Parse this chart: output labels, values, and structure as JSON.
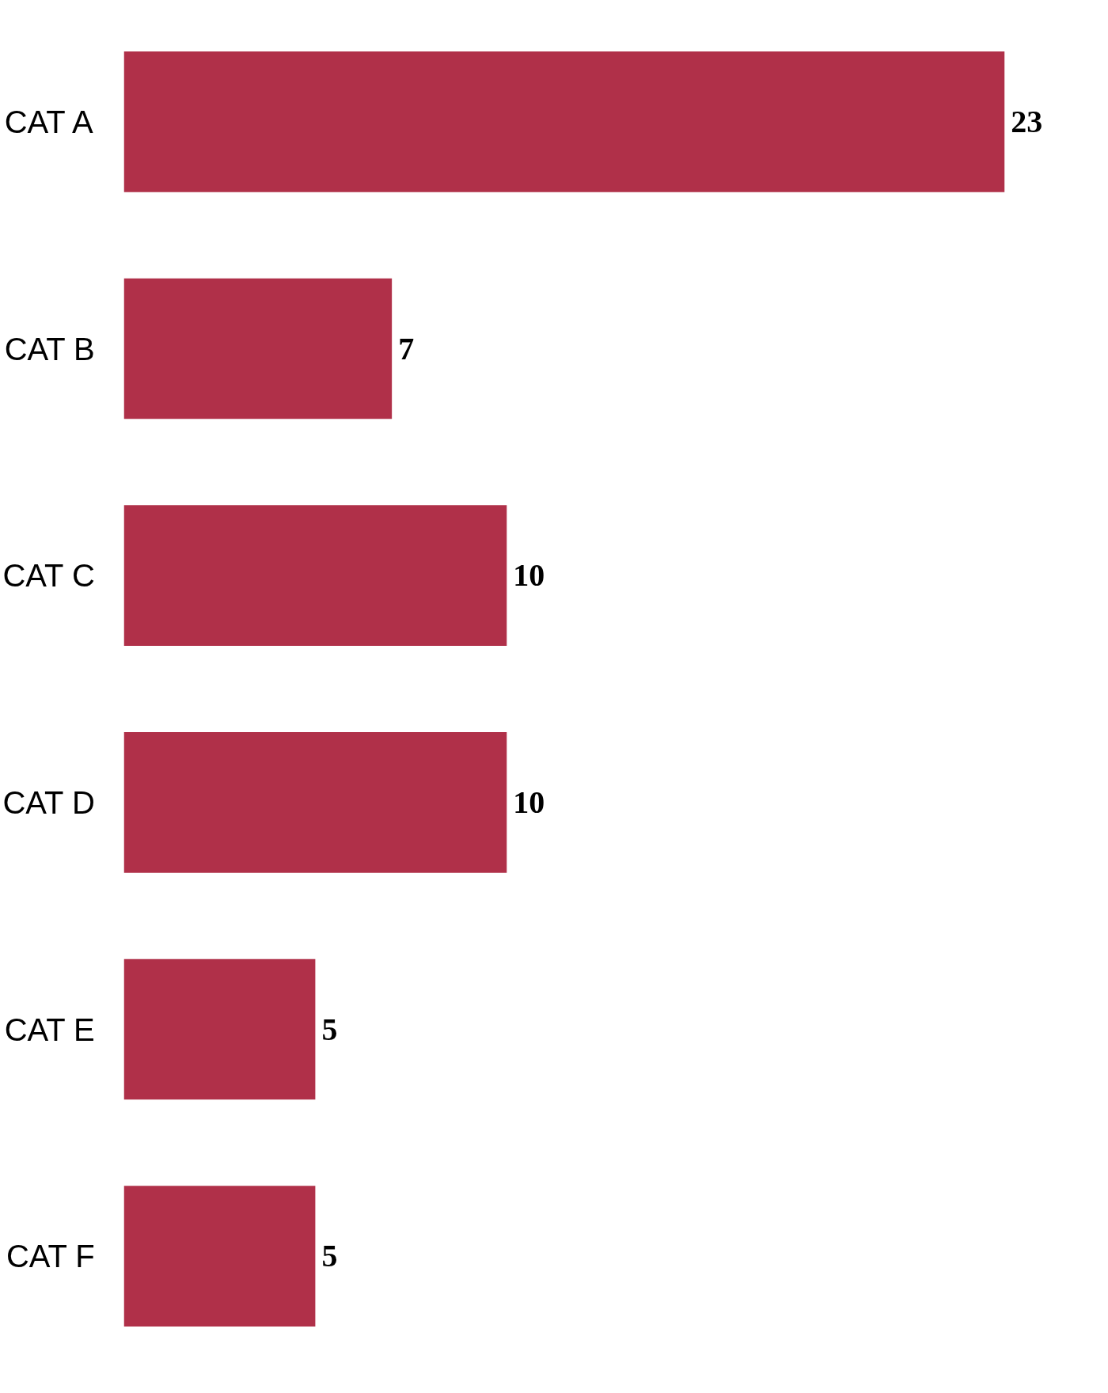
{
  "chart_data": {
    "type": "bar",
    "orientation": "horizontal",
    "categories": [
      "CAT A",
      "CAT B",
      "CAT C",
      "CAT D",
      "CAT E",
      "CAT F"
    ],
    "values": [
      23,
      7,
      10,
      10,
      5,
      5
    ],
    "color": "#b03049",
    "data_labels": true,
    "grid": false
  }
}
